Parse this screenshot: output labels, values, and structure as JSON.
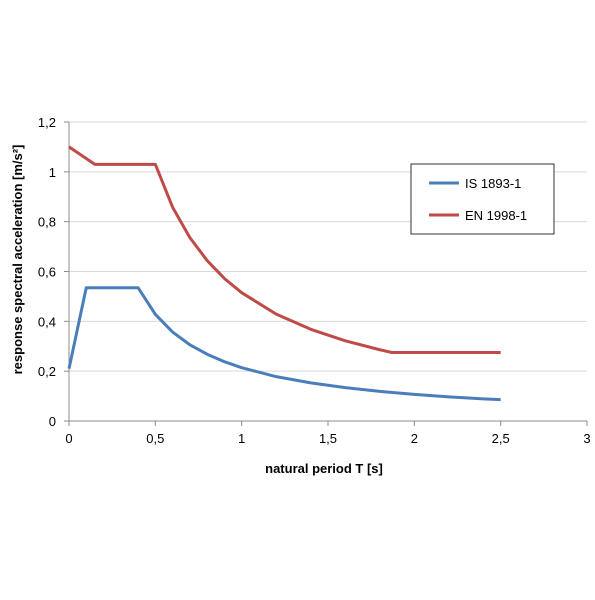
{
  "chart_data": {
    "type": "line",
    "title": "",
    "xlabel": "natural period T [s]",
    "ylabel": "response spectral acceleration [m/s²]",
    "xlim": [
      0,
      3
    ],
    "ylim": [
      0,
      1.2
    ],
    "x_ticks": [
      0,
      0.5,
      1,
      1.5,
      2,
      2.5,
      3
    ],
    "x_tick_labels": [
      "0",
      "0,5",
      "1",
      "1,5",
      "2",
      "2,5",
      "3"
    ],
    "y_ticks": [
      0,
      0.2,
      0.4,
      0.6,
      0.8,
      1,
      1.2
    ],
    "y_tick_labels": [
      "0",
      "0,2",
      "0,4",
      "0,6",
      "0,8",
      "1",
      "1,2"
    ],
    "grid": "horizontal",
    "legend_position": "top-right",
    "series": [
      {
        "name": "IS 1893-1",
        "color": "#4a7ebb",
        "x": [
          0,
          0.1,
          0.4,
          0.5,
          0.6,
          0.7,
          0.8,
          0.9,
          1.0,
          1.2,
          1.4,
          1.6,
          1.8,
          2.0,
          2.2,
          2.4,
          2.5
        ],
        "y": [
          0.21,
          0.535,
          0.535,
          0.428,
          0.357,
          0.306,
          0.268,
          0.238,
          0.214,
          0.178,
          0.153,
          0.134,
          0.119,
          0.107,
          0.097,
          0.089,
          0.086
        ]
      },
      {
        "name": "EN 1998-1",
        "color": "#be4b48",
        "x": [
          0,
          0.15,
          0.5,
          0.6,
          0.7,
          0.8,
          0.9,
          1.0,
          1.2,
          1.4,
          1.6,
          1.8,
          1.87,
          2.0,
          2.2,
          2.5
        ],
        "y": [
          1.1,
          1.03,
          1.03,
          0.858,
          0.736,
          0.644,
          0.572,
          0.515,
          0.429,
          0.368,
          0.322,
          0.286,
          0.275,
          0.275,
          0.275,
          0.275
        ]
      }
    ]
  }
}
